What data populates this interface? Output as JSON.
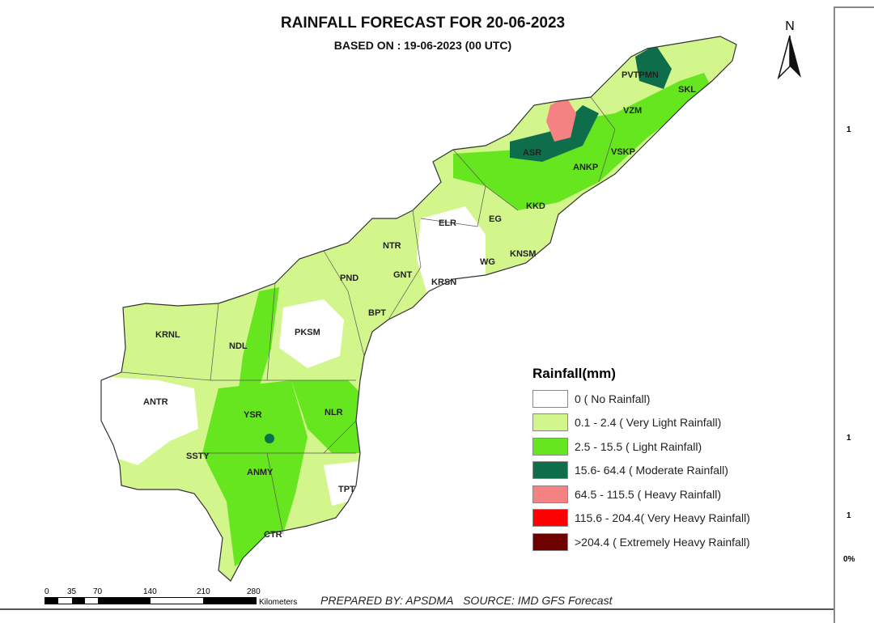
{
  "title": "RAINFALL FORECAST FOR 20-06-2023",
  "subtitle": "BASED ON : 19-06-2023 (00 UTC)",
  "north_label": "N",
  "legend": {
    "title": "Rainfall(mm)",
    "items": [
      {
        "label": "0 ( No Rainfall)",
        "color": "#ffffff"
      },
      {
        "label": "0.1 - 2.4 ( Very Light Rainfall)",
        "color": "#d2f58c"
      },
      {
        "label": "2.5 - 15.5 ( Light Rainfall)",
        "color": "#66e61e"
      },
      {
        "label": "15.6- 64.4 ( Moderate Rainfall)",
        "color": "#0e6e4c"
      },
      {
        "label": "64.5 - 115.5 ( Heavy Rainfall)",
        "color": "#f58282"
      },
      {
        "label": "115.6 - 204.4( Very Heavy Rainfall)",
        "color": "#ff0000"
      },
      {
        "label": ">204.4 ( Extremely Heavy Rainfall)",
        "color": "#6e0000"
      }
    ]
  },
  "districts": [
    "PVTPMN",
    "SKL",
    "VZM",
    "ASR",
    "VSKP",
    "ANKP",
    "KKD",
    "EG",
    "ELR",
    "KNSM",
    "WG",
    "NTR",
    "KRSN",
    "GNT",
    "PND",
    "BPT",
    "PKSM",
    "KRNL",
    "NDL",
    "ANTR",
    "YSR",
    "NLR",
    "SSTY",
    "ANMY",
    "TPT",
    "CTR"
  ],
  "scale": {
    "ticks": [
      "0",
      "35",
      "70",
      "140",
      "210",
      "280"
    ],
    "unit": "Kilometers"
  },
  "credit": {
    "prepared": "PREPARED BY: APSDMA",
    "source": "SOURCE: IMD GFS Forecast"
  },
  "right_panel": {
    "labels": [
      "1",
      "1",
      "1",
      "0%"
    ]
  }
}
